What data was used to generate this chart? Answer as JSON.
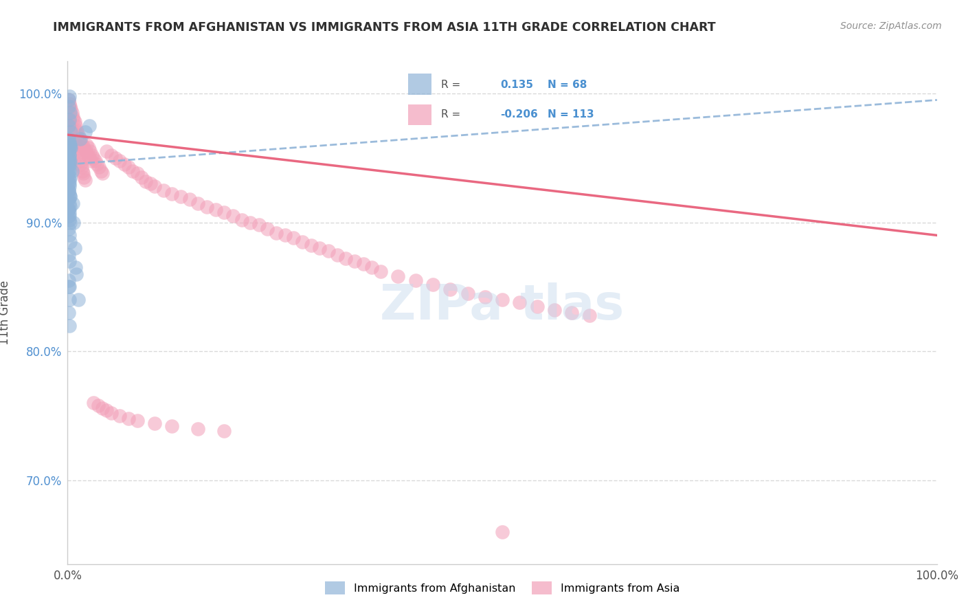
{
  "title": "IMMIGRANTS FROM AFGHANISTAN VS IMMIGRANTS FROM ASIA 11TH GRADE CORRELATION CHART",
  "source": "Source: ZipAtlas.com",
  "ylabel": "11th Grade",
  "xlim": [
    0.0,
    1.0
  ],
  "ylim": [
    0.635,
    1.025
  ],
  "yticks": [
    0.7,
    0.8,
    0.9,
    1.0
  ],
  "yticklabels": [
    "70.0%",
    "80.0%",
    "90.0%",
    "100.0%"
  ],
  "xticks": [
    0.0,
    0.25,
    0.5,
    0.75,
    1.0
  ],
  "xticklabels": [
    "0.0%",
    "",
    "",
    "",
    "100.0%"
  ],
  "afghanistan_color": "#90b4d8",
  "asia_color": "#f2a0b8",
  "asia_line_color": "#e8607a",
  "afghanistan_R": 0.135,
  "afghanistan_N": 68,
  "asia_R": -0.206,
  "asia_N": 113,
  "afghanistan_scatter_x": [
    0.001,
    0.002,
    0.001,
    0.003,
    0.002,
    0.001,
    0.004,
    0.001,
    0.002,
    0.003,
    0.001,
    0.002,
    0.001,
    0.002,
    0.003,
    0.001,
    0.002,
    0.001,
    0.003,
    0.002,
    0.001,
    0.002,
    0.001,
    0.002,
    0.003,
    0.001,
    0.002,
    0.003,
    0.001,
    0.002,
    0.001,
    0.002,
    0.003,
    0.001,
    0.002,
    0.004,
    0.001,
    0.002,
    0.003,
    0.001,
    0.005,
    0.001,
    0.002,
    0.001,
    0.003,
    0.006,
    0.001,
    0.002,
    0.007,
    0.001,
    0.002,
    0.003,
    0.008,
    0.001,
    0.002,
    0.009,
    0.01,
    0.001,
    0.002,
    0.012,
    0.003,
    0.015,
    0.001,
    0.002,
    0.02,
    0.001,
    0.002,
    0.025
  ],
  "afghanistan_scatter_y": [
    0.995,
    0.998,
    0.99,
    0.985,
    0.98,
    0.975,
    0.97,
    0.965,
    0.96,
    0.958,
    0.955,
    0.952,
    0.95,
    0.948,
    0.945,
    0.942,
    0.94,
    0.938,
    0.935,
    0.933,
    0.93,
    0.928,
    0.925,
    0.922,
    0.92,
    0.918,
    0.915,
    0.912,
    0.91,
    0.908,
    0.905,
    0.902,
    0.9,
    0.96,
    0.962,
    0.958,
    0.955,
    0.952,
    0.948,
    0.945,
    0.94,
    0.935,
    0.93,
    0.925,
    0.92,
    0.915,
    0.91,
    0.905,
    0.9,
    0.895,
    0.89,
    0.885,
    0.88,
    0.875,
    0.87,
    0.865,
    0.86,
    0.855,
    0.85,
    0.84,
    0.96,
    0.965,
    0.85,
    0.84,
    0.97,
    0.83,
    0.82,
    0.975
  ],
  "asia_scatter_x": [
    0.001,
    0.002,
    0.003,
    0.004,
    0.005,
    0.006,
    0.007,
    0.008,
    0.009,
    0.01,
    0.011,
    0.012,
    0.013,
    0.014,
    0.015,
    0.016,
    0.017,
    0.018,
    0.019,
    0.02,
    0.022,
    0.024,
    0.026,
    0.028,
    0.03,
    0.032,
    0.034,
    0.036,
    0.038,
    0.04,
    0.045,
    0.05,
    0.055,
    0.06,
    0.065,
    0.07,
    0.075,
    0.08,
    0.085,
    0.09,
    0.095,
    0.1,
    0.11,
    0.12,
    0.13,
    0.14,
    0.15,
    0.16,
    0.17,
    0.18,
    0.19,
    0.2,
    0.21,
    0.22,
    0.23,
    0.24,
    0.25,
    0.26,
    0.27,
    0.28,
    0.29,
    0.3,
    0.31,
    0.32,
    0.33,
    0.34,
    0.35,
    0.36,
    0.38,
    0.4,
    0.42,
    0.44,
    0.46,
    0.48,
    0.5,
    0.52,
    0.54,
    0.56,
    0.58,
    0.6,
    0.001,
    0.002,
    0.003,
    0.004,
    0.005,
    0.006,
    0.007,
    0.008,
    0.009,
    0.01,
    0.011,
    0.012,
    0.013,
    0.015,
    0.017,
    0.019,
    0.021,
    0.023,
    0.025,
    0.027,
    0.03,
    0.035,
    0.04,
    0.045,
    0.05,
    0.06,
    0.07,
    0.08,
    0.1,
    0.12,
    0.15,
    0.18,
    0.5
  ],
  "asia_scatter_y": [
    0.98,
    0.978,
    0.975,
    0.972,
    0.97,
    0.968,
    0.965,
    0.963,
    0.96,
    0.958,
    0.955,
    0.953,
    0.95,
    0.948,
    0.945,
    0.943,
    0.94,
    0.938,
    0.935,
    0.933,
    0.96,
    0.958,
    0.955,
    0.952,
    0.95,
    0.948,
    0.945,
    0.943,
    0.94,
    0.938,
    0.955,
    0.952,
    0.95,
    0.948,
    0.945,
    0.943,
    0.94,
    0.938,
    0.935,
    0.932,
    0.93,
    0.928,
    0.925,
    0.922,
    0.92,
    0.918,
    0.915,
    0.912,
    0.91,
    0.908,
    0.905,
    0.902,
    0.9,
    0.898,
    0.895,
    0.892,
    0.89,
    0.888,
    0.885,
    0.882,
    0.88,
    0.878,
    0.875,
    0.872,
    0.87,
    0.868,
    0.865,
    0.862,
    0.858,
    0.855,
    0.852,
    0.848,
    0.845,
    0.842,
    0.84,
    0.838,
    0.835,
    0.832,
    0.83,
    0.828,
    0.995,
    0.992,
    0.99,
    0.988,
    0.985,
    0.982,
    0.98,
    0.978,
    0.975,
    0.972,
    0.97,
    0.968,
    0.965,
    0.962,
    0.96,
    0.958,
    0.955,
    0.952,
    0.95,
    0.948,
    0.76,
    0.758,
    0.756,
    0.754,
    0.752,
    0.75,
    0.748,
    0.746,
    0.744,
    0.742,
    0.74,
    0.738,
    0.66
  ],
  "background_color": "#ffffff",
  "grid_color": "#d0d0d0",
  "title_color": "#303030",
  "source_color": "#909090",
  "ylabel_color": "#505050",
  "tick_color_y": "#5090d0",
  "tick_color_x": "#505050",
  "watermark_color": "#c5d8ec",
  "watermark_alpha": 0.45
}
